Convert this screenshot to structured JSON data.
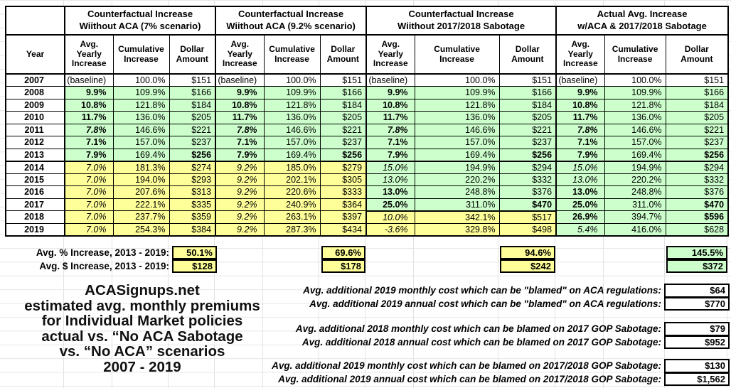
{
  "colors": {
    "row_green": "#ccffcc",
    "row_yellow": "#ffff99",
    "border": "#000000",
    "grid_line": "#e2e2e2"
  },
  "header": {
    "year_label": "Year",
    "groups": [
      {
        "line1": "Counterfactual Increase",
        "line2": "Wiithout ACA (7% scenario)"
      },
      {
        "line1": "Counterfactual Increase",
        "line2": "Wiithout ACA (9.2% scenario)"
      },
      {
        "line1": "Counterfactual Increase",
        "line2": "Wiithout 2017/2018 Sabotage"
      },
      {
        "line1": "Actual Avg. Increase",
        "line2": "w/ACA & 2017/2018 Sabotage"
      }
    ],
    "sub_headers": [
      "Avg. Yearly Increase",
      "Cumulative Increase",
      "Dollar Amount"
    ]
  },
  "table": {
    "rows": [
      {
        "year": "2007",
        "thick": false,
        "cells": [
          [
            "(baseline)",
            "cw"
          ],
          [
            "100.0%",
            "w"
          ],
          [
            "$151",
            "w"
          ],
          [
            "(baseline)",
            "cw"
          ],
          [
            "100.0%",
            "w"
          ],
          [
            "$151",
            "w"
          ],
          [
            "(baseline)",
            "cw"
          ],
          [
            "100.0%",
            "w"
          ],
          [
            "$151",
            "w"
          ],
          [
            "(baseline)",
            "cw"
          ],
          [
            "100.0%",
            "w"
          ],
          [
            "$151",
            "w"
          ]
        ]
      },
      {
        "year": "2008",
        "thick": false,
        "cells": [
          [
            "9.9%",
            "bg"
          ],
          [
            "109.9%",
            "g"
          ],
          [
            "$166",
            "g"
          ],
          [
            "9.9%",
            "bg"
          ],
          [
            "109.9%",
            "g"
          ],
          [
            "$166",
            "g"
          ],
          [
            "9.9%",
            "bg"
          ],
          [
            "109.9%",
            "g"
          ],
          [
            "$166",
            "g"
          ],
          [
            "9.9%",
            "bg"
          ],
          [
            "109.9%",
            "g"
          ],
          [
            "$166",
            "g"
          ]
        ]
      },
      {
        "year": "2009",
        "thick": false,
        "cells": [
          [
            "10.8%",
            "bg"
          ],
          [
            "121.8%",
            "g"
          ],
          [
            "$184",
            "g"
          ],
          [
            "10.8%",
            "bg"
          ],
          [
            "121.8%",
            "g"
          ],
          [
            "$184",
            "g"
          ],
          [
            "10.8%",
            "bg"
          ],
          [
            "121.8%",
            "g"
          ],
          [
            "$184",
            "g"
          ],
          [
            "10.8%",
            "bg"
          ],
          [
            "121.8%",
            "g"
          ],
          [
            "$184",
            "g"
          ]
        ]
      },
      {
        "year": "2010",
        "thick": false,
        "cells": [
          [
            "11.7%",
            "bg"
          ],
          [
            "136.0%",
            "g"
          ],
          [
            "$205",
            "g"
          ],
          [
            "11.7%",
            "bg"
          ],
          [
            "136.0%",
            "g"
          ],
          [
            "$205",
            "g"
          ],
          [
            "11.7%",
            "bg"
          ],
          [
            "136.0%",
            "g"
          ],
          [
            "$205",
            "g"
          ],
          [
            "11.7%",
            "bg"
          ],
          [
            "136.0%",
            "g"
          ],
          [
            "$205",
            "g"
          ]
        ]
      },
      {
        "year": "2011",
        "thick": false,
        "cells": [
          [
            "7.8%",
            "big"
          ],
          [
            "146.6%",
            "g"
          ],
          [
            "$221",
            "g"
          ],
          [
            "7.8%",
            "big"
          ],
          [
            "146.6%",
            "g"
          ],
          [
            "$221",
            "g"
          ],
          [
            "7.8%",
            "big"
          ],
          [
            "146.6%",
            "g"
          ],
          [
            "$221",
            "g"
          ],
          [
            "7.8%",
            "big"
          ],
          [
            "146.6%",
            "g"
          ],
          [
            "$221",
            "g"
          ]
        ]
      },
      {
        "year": "2012",
        "thick": false,
        "cells": [
          [
            "7.1%",
            "bg"
          ],
          [
            "157.0%",
            "g"
          ],
          [
            "$237",
            "g"
          ],
          [
            "7.1%",
            "bg"
          ],
          [
            "157.0%",
            "g"
          ],
          [
            "$237",
            "g"
          ],
          [
            "7.1%",
            "bg"
          ],
          [
            "157.0%",
            "g"
          ],
          [
            "$237",
            "g"
          ],
          [
            "7.1%",
            "bg"
          ],
          [
            "157.0%",
            "g"
          ],
          [
            "$237",
            "g"
          ]
        ]
      },
      {
        "year": "2013",
        "thick": true,
        "cells": [
          [
            "7.9%",
            "bg"
          ],
          [
            "169.4%",
            "g"
          ],
          [
            "$256",
            "bg"
          ],
          [
            "7.9%",
            "bg"
          ],
          [
            "169.4%",
            "g"
          ],
          [
            "$256",
            "bg"
          ],
          [
            "7.9%",
            "bg"
          ],
          [
            "169.4%",
            "g"
          ],
          [
            "$256",
            "bg"
          ],
          [
            "7.9%",
            "bg"
          ],
          [
            "169.4%",
            "g"
          ],
          [
            "$256",
            "bg"
          ]
        ]
      },
      {
        "year": "2014",
        "thick": false,
        "cells": [
          [
            "7.0%",
            "iy"
          ],
          [
            "181.3%",
            "y"
          ],
          [
            "$274",
            "y"
          ],
          [
            "9.2%",
            "iy"
          ],
          [
            "185.0%",
            "y"
          ],
          [
            "$279",
            "y"
          ],
          [
            "15.0%",
            "ig"
          ],
          [
            "194.9%",
            "g"
          ],
          [
            "$294",
            "g"
          ],
          [
            "15.0%",
            "ig"
          ],
          [
            "194.9%",
            "g"
          ],
          [
            "$294",
            "g"
          ]
        ]
      },
      {
        "year": "2015",
        "thick": false,
        "cells": [
          [
            "7.0%",
            "iy"
          ],
          [
            "194.0%",
            "y"
          ],
          [
            "$293",
            "y"
          ],
          [
            "9.2%",
            "iy"
          ],
          [
            "202.1%",
            "y"
          ],
          [
            "$305",
            "y"
          ],
          [
            "13.0%",
            "ig"
          ],
          [
            "220.2%",
            "g"
          ],
          [
            "$332",
            "g"
          ],
          [
            "13.0%",
            "ig"
          ],
          [
            "220.2%",
            "g"
          ],
          [
            "$332",
            "g"
          ]
        ]
      },
      {
        "year": "2016",
        "thick": false,
        "cells": [
          [
            "7.0%",
            "iy"
          ],
          [
            "207.6%",
            "y"
          ],
          [
            "$313",
            "y"
          ],
          [
            "9.2%",
            "iy"
          ],
          [
            "220.6%",
            "y"
          ],
          [
            "$333",
            "y"
          ],
          [
            "13.0%",
            "bg"
          ],
          [
            "248.8%",
            "g"
          ],
          [
            "$376",
            "g"
          ],
          [
            "13.0%",
            "bg"
          ],
          [
            "248.8%",
            "g"
          ],
          [
            "$376",
            "g"
          ]
        ]
      },
      {
        "year": "2017",
        "thick": false,
        "cells": [
          [
            "7.0%",
            "iy"
          ],
          [
            "222.1%",
            "y"
          ],
          [
            "$335",
            "y"
          ],
          [
            "9.2%",
            "iy"
          ],
          [
            "240.9%",
            "y"
          ],
          [
            "$364",
            "y"
          ],
          [
            "25.0%",
            "bgt"
          ],
          [
            "311.0%",
            "gt"
          ],
          [
            "$470",
            "bgt"
          ],
          [
            "25.0%",
            "bg"
          ],
          [
            "311.0%",
            "g"
          ],
          [
            "$470",
            "bg"
          ]
        ]
      },
      {
        "year": "2018",
        "thick": false,
        "cells": [
          [
            "7.0%",
            "iy"
          ],
          [
            "237.7%",
            "y"
          ],
          [
            "$359",
            "y"
          ],
          [
            "9.2%",
            "iy"
          ],
          [
            "263.1%",
            "y"
          ],
          [
            "$397",
            "y"
          ],
          [
            "10.0%",
            "iy"
          ],
          [
            "342.1%",
            "y"
          ],
          [
            "$517",
            "y"
          ],
          [
            "26.9%",
            "bg"
          ],
          [
            "394.7%",
            "g"
          ],
          [
            "$596",
            "bg"
          ]
        ]
      },
      {
        "year": "2019",
        "thick": true,
        "cells": [
          [
            "7.0%",
            "iy"
          ],
          [
            "254.3%",
            "y"
          ],
          [
            "$384",
            "y"
          ],
          [
            "9.2%",
            "iy"
          ],
          [
            "287.3%",
            "y"
          ],
          [
            "$434",
            "y"
          ],
          [
            "-3.6%",
            "iy"
          ],
          [
            "329.8%",
            "y"
          ],
          [
            "$498",
            "y"
          ],
          [
            "5.4%",
            "ig"
          ],
          [
            "416.0%",
            "g"
          ],
          [
            "$628",
            "g"
          ]
        ]
      }
    ]
  },
  "summary": {
    "rows": [
      {
        "label": "Avg. % Increase, 2013 - 2019:",
        "values": [
          {
            "v": "50.1%",
            "bg": "yellow"
          },
          {
            "v": "69.6%",
            "bg": "yellow"
          },
          {
            "v": "94.6%",
            "bg": "yellow"
          },
          {
            "v": "145.5%",
            "bg": "green"
          }
        ]
      },
      {
        "label": "Avg. $ Increase, 2013 - 2019:",
        "values": [
          {
            "v": "$128",
            "bg": "yellow"
          },
          {
            "v": "$178",
            "bg": "yellow"
          },
          {
            "v": "$242",
            "bg": "yellow"
          },
          {
            "v": "$372",
            "bg": "green"
          }
        ]
      }
    ]
  },
  "footer": {
    "title_lines": [
      "ACASignups.net",
      "estimated avg. monthly premiums",
      "for Individual Market policies",
      "actual vs. “No ACA Sabotage",
      "vs. “No ACA” scenarios",
      "2007 - 2019"
    ],
    "annotations": [
      {
        "label": "Avg. additional 2019 monthly cost which can be \"blamed\" on ACA regulations:",
        "value": "$64"
      },
      {
        "label": "Avg. additional 2019 annual cost which can be \"blamed\" on ACA regulations:",
        "value": "$770"
      },
      {
        "label": "Avg. additional 2018 monthly cost which can be blamed on 2017 GOP Sabotage:",
        "value": "$79"
      },
      {
        "label": "Avg. additional 2018 annual cost which can be blamed on 2017 GOP Sabotage:",
        "value": "$952"
      },
      {
        "label": "Avg. additional 2019 monthly cost which can be blamed on 2017/2018 GOP Sabotage:",
        "value": "$130"
      },
      {
        "label": "Avg. additional 2019 annual cost which can be blamed on 2017/2018 GOP Sabotage:",
        "value": "$1,562"
      }
    ]
  }
}
